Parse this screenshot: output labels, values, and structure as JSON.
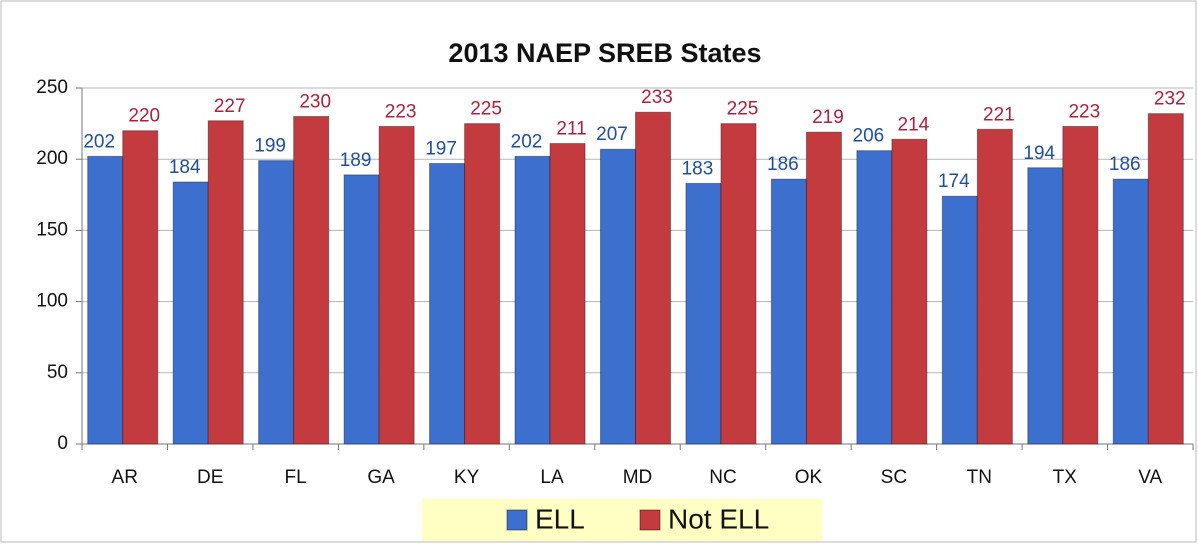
{
  "chart_data": {
    "type": "bar",
    "title": "2013 NAEP SREB States",
    "categories": [
      "AR",
      "DE",
      "FL",
      "GA",
      "KY",
      "LA",
      "MD",
      "NC",
      "OK",
      "SC",
      "TN",
      "TX",
      "VA"
    ],
    "series": [
      {
        "name": "ELL",
        "color": "#3d6fcf",
        "values": [
          202,
          184,
          199,
          189,
          197,
          202,
          207,
          183,
          186,
          206,
          174,
          194,
          186
        ]
      },
      {
        "name": "Not ELL",
        "color": "#c43b3f",
        "values": [
          220,
          227,
          230,
          223,
          225,
          211,
          233,
          225,
          219,
          214,
          221,
          223,
          232
        ]
      }
    ],
    "ylim": [
      0,
      250
    ],
    "yticks": [
      0,
      50,
      100,
      150,
      200,
      250
    ],
    "grid": true,
    "legend": "bottom"
  }
}
